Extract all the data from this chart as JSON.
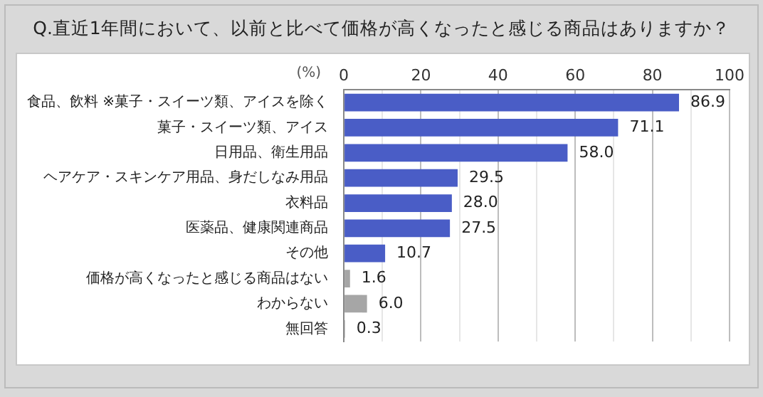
{
  "chart_data": {
    "type": "bar",
    "orientation": "horizontal",
    "title": "Q.直近1年間において、以前と比べて価格が高くなったと感じる商品はありますか？",
    "xlabel": "(%)",
    "categories": [
      "食品、飲料 ※菓子・スイーツ類、アイスを除く",
      "菓子・スイーツ類、アイス",
      "日用品、衛生用品",
      "ヘアケア・スキンケア用品、身だしなみ用品",
      "衣料品",
      "医薬品、健康関連商品",
      "その他",
      "価格が高くなったと感じる商品はない",
      "わからない",
      "無回答"
    ],
    "values": [
      86.9,
      71.1,
      58.0,
      29.5,
      28.0,
      27.5,
      10.7,
      1.6,
      6.0,
      0.3
    ],
    "value_labels": [
      "86.9",
      "71.1",
      "58.0",
      "29.5",
      "28.0",
      "27.5",
      "10.7",
      "1.6",
      "6.0",
      "0.3"
    ],
    "colors": [
      "#4a5dc6",
      "#4a5dc6",
      "#4a5dc6",
      "#4a5dc6",
      "#4a5dc6",
      "#4a5dc6",
      "#4a5dc6",
      "#a6a6a6",
      "#a6a6a6",
      "#a6a6a6"
    ],
    "xlim": [
      0,
      100
    ],
    "xticks": [
      0,
      {
        "value": 10,
        "label": null
      },
      20,
      {
        "value": 30,
        "label": null
      },
      40,
      {
        "value": 50,
        "label": null
      },
      60,
      {
        "value": 70,
        "label": null
      },
      80,
      {
        "value": 90,
        "label": null
      },
      100
    ],
    "grid": "x"
  }
}
